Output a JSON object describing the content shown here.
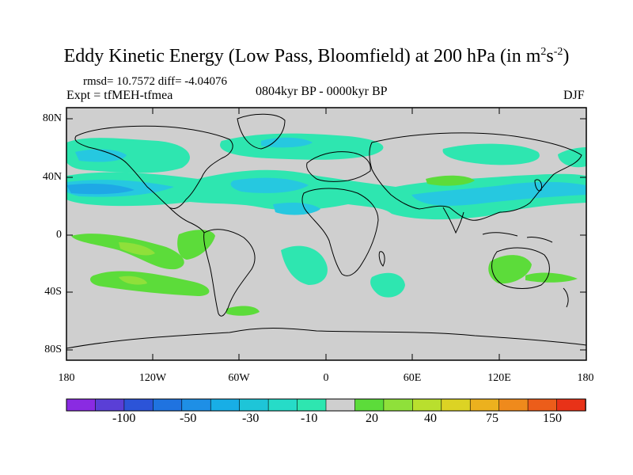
{
  "title": {
    "main": "Eddy Kinetic Energy (Low Pass, Bloomfield) at 200 hPa (in m",
    "sup1": "2",
    "mid": "s",
    "sup2": "-2",
    "end": ")"
  },
  "stats": "rmsd= 10.7572 diff= -4.04076",
  "expt": "Expt = tfMEH-tfmea",
  "period": "0804kyr BP - 0000kyr BP",
  "season": "DJF",
  "lat_labels": [
    "80N",
    "40N",
    "0",
    "40S",
    "80S"
  ],
  "lon_labels": [
    "180",
    "120W",
    "60W",
    "0",
    "60E",
    "120E",
    "180"
  ],
  "colorbar": {
    "labels": [
      "-100",
      "-50",
      "-30",
      "-10",
      "20",
      "40",
      "75",
      "150"
    ],
    "colors": [
      "#8a2be2",
      "#5a3fd6",
      "#2c54d8",
      "#1f73e0",
      "#1e8fe6",
      "#18aee6",
      "#1ec5d8",
      "#26dcc8",
      "#2ee6b0",
      "#cfcfcf",
      "#5cdc3a",
      "#8fe03a",
      "#b9df2e",
      "#dcd324",
      "#ecb11e",
      "#ef8a1c",
      "#ec5d1a",
      "#e83218"
    ]
  },
  "map": {
    "ocean_color": "#cfcfcf",
    "cyan": "#2ee6b0",
    "light_blue": "#26c8e0",
    "blue": "#1ea8e6",
    "green": "#5cdc3a",
    "lime": "#8fe03a"
  }
}
